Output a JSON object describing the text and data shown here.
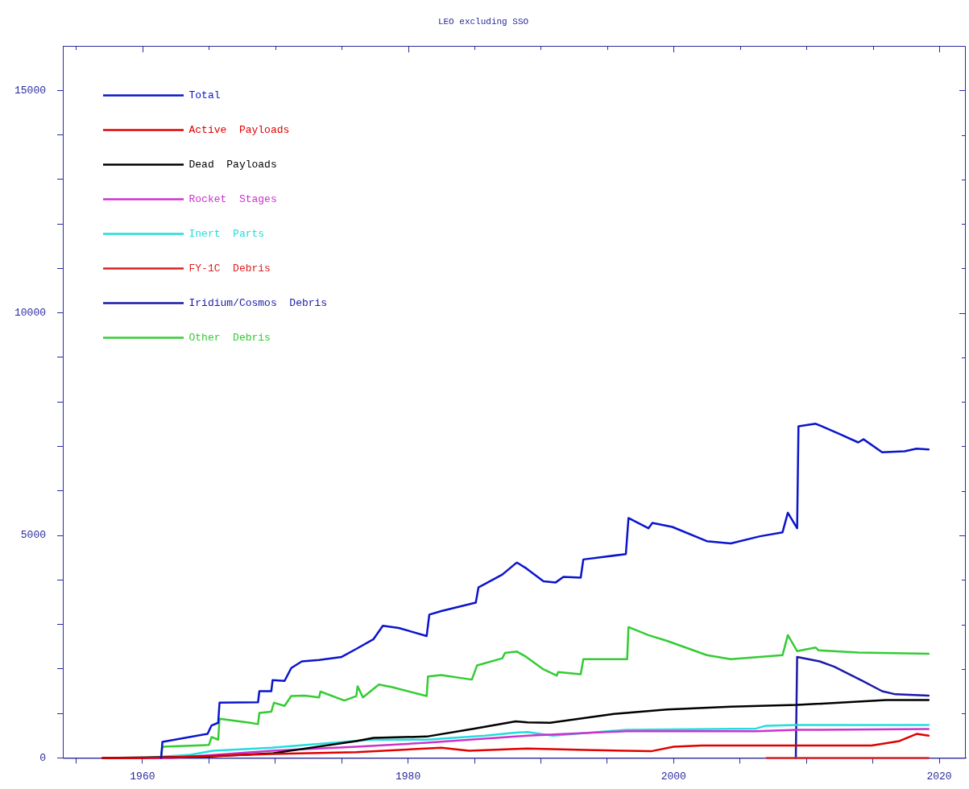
{
  "chart_data": {
    "type": "line",
    "title": "LEO excluding SSO",
    "legend": "top left",
    "grid": false,
    "marker": "none",
    "line_style": "solid",
    "xlim": [
      1954,
      2022
    ],
    "ylim": [
      0,
      16000
    ],
    "xticks": [
      {
        "value": 1955,
        "label": null
      },
      1960,
      {
        "value": 1965,
        "label": null
      },
      {
        "value": 1970,
        "label": null
      },
      {
        "value": 1975,
        "label": null
      },
      1980,
      {
        "value": 1985,
        "label": null
      },
      {
        "value": 1990,
        "label": null
      },
      {
        "value": 1995,
        "label": null
      },
      2000,
      {
        "value": 2005,
        "label": null
      },
      {
        "value": 2010,
        "label": null
      },
      {
        "value": 2015,
        "label": null
      },
      2020
    ],
    "yticks": [
      0,
      {
        "value": 1000,
        "label": null
      },
      {
        "value": 2000,
        "label": null
      },
      {
        "value": 3000,
        "label": null
      },
      {
        "value": 4000,
        "label": null
      },
      5000,
      {
        "value": 6000,
        "label": null
      },
      {
        "value": 7000,
        "label": null
      },
      {
        "value": 8000,
        "label": null
      },
      {
        "value": 9000,
        "label": null
      },
      10000,
      {
        "value": 11000,
        "label": null
      },
      {
        "value": 12000,
        "label": null
      },
      {
        "value": 13000,
        "label": null
      },
      {
        "value": 14000,
        "label": null
      },
      15000
    ],
    "series": [
      {
        "name": "Total",
        "color": "#0a14cc",
        "x": [
          1961.4,
          1961.5,
          1964.9,
          1965.2,
          1965.7,
          1965.8,
          1968.7,
          1968.8,
          1969.7,
          1969.8,
          1970.7,
          1971.2,
          1972,
          1973.3,
          1975,
          1976.1,
          1977.4,
          1978.1,
          1979.3,
          1981.4,
          1981.6,
          1982.5,
          1985.1,
          1985.3,
          1987.1,
          1988.1,
          1988.2,
          1988.9,
          1990.2,
          1991.1,
          1991.7,
          1993,
          1993.2,
          1996.4,
          1996.6,
          1998.1,
          1998.4,
          1999.9,
          2002.5,
          2004.3,
          2006.5,
          2008.2,
          2008.6,
          2009.3,
          2009.4,
          2010.7,
          2012.4,
          2013.9,
          2014.3,
          2015.7,
          2017.4,
          2018.3,
          2019.2
        ],
        "values": [
          0,
          360,
          540,
          730,
          790,
          1240,
          1250,
          1500,
          1500,
          1750,
          1730,
          2020,
          2170,
          2200,
          2270,
          2450,
          2670,
          2970,
          2920,
          2740,
          3220,
          3300,
          3490,
          3830,
          4120,
          4370,
          4390,
          4260,
          3970,
          3940,
          4070,
          4050,
          4460,
          4580,
          5390,
          5160,
          5280,
          5190,
          4870,
          4820,
          4980,
          5070,
          5510,
          5160,
          7450,
          7510,
          7290,
          7090,
          7160,
          6870,
          6890,
          6950,
          6930
        ]
      },
      {
        "name": "Active  Payloads",
        "color": "#e00000",
        "x": [
          1957,
          1960,
          1963,
          1969.7,
          1976.1,
          1982.5,
          1984.6,
          1988.1,
          1989,
          1993.4,
          1998.3,
          2000,
          2002.1,
          2010.7,
          2014.9,
          2017,
          2018.3,
          2019.2
        ],
        "values": [
          0,
          0,
          20,
          90,
          130,
          230,
          160,
          200,
          210,
          180,
          150,
          250,
          280,
          280,
          280,
          380,
          540,
          500
        ]
      },
      {
        "name": "Dead  Payloads",
        "color": "#000000",
        "x": [
          1957,
          1964.9,
          1969.7,
          1976.1,
          1977.4,
          1981.4,
          1985,
          1988.1,
          1989,
          1990.7,
          1995.5,
          1999.5,
          2004.3,
          2009.3,
          2016,
          2019.2
        ],
        "values": [
          0,
          30,
          100,
          380,
          450,
          480,
          660,
          820,
          800,
          790,
          990,
          1090,
          1150,
          1190,
          1300,
          1300
        ]
      },
      {
        "name": "Rocket  Stages",
        "color": "#cc33cc",
        "x": [
          1957,
          1962.2,
          1969.7,
          1976.1,
          1981.4,
          1988.1,
          1989,
          1996.4,
          2006.2,
          2009.3,
          2019.2
        ],
        "values": [
          0,
          0,
          160,
          250,
          340,
          480,
          500,
          600,
          600,
          630,
          650
        ]
      },
      {
        "name": "Inert  Parts",
        "color": "#22dddd",
        "x": [
          1957,
          1960,
          1963.6,
          1965.3,
          1969.7,
          1977.2,
          1981.4,
          1985.8,
          1988.1,
          1989,
          1990.9,
          1996.4,
          2006.2,
          2006.9,
          2009.3,
          2019.2
        ],
        "values": [
          0,
          0,
          70,
          160,
          230,
          410,
          410,
          500,
          570,
          580,
          500,
          630,
          660,
          720,
          740,
          740
        ]
      },
      {
        "name": "FY-1C  Debris",
        "color": "#dd2020",
        "x": [
          2007,
          2019.2
        ],
        "values": [
          0,
          0
        ]
      },
      {
        "name": "Iridium/Cosmos  Debris",
        "color": "#1a1aa8",
        "x": [
          2009.2,
          2009.3,
          2011,
          2012.1,
          2014.3,
          2015.7,
          2016.7,
          2019.2
        ],
        "values": [
          0,
          2270,
          2170,
          2050,
          1720,
          1500,
          1430,
          1400
        ]
      },
      {
        "name": "Other  Debris",
        "color": "#33cc33",
        "x": [
          1961.4,
          1961.5,
          1965,
          1965.2,
          1965.7,
          1965.8,
          1968.1,
          1968.7,
          1968.8,
          1969.7,
          1969.9,
          1970.7,
          1971.2,
          1972.2,
          1973.3,
          1973.4,
          1975.2,
          1976.1,
          1976.2,
          1976.6,
          1977.8,
          1978.8,
          1981.4,
          1981.5,
          1982.5,
          1984.8,
          1985.2,
          1987.1,
          1987.3,
          1988.2,
          1988.9,
          1990.2,
          1991.2,
          1991.3,
          1993,
          1993.2,
          1996.5,
          1996.6,
          1998.1,
          1999.5,
          2002.5,
          2004.3,
          2008.2,
          2008.6,
          2009.3,
          2010.7,
          2010.9,
          2013.9,
          2019.2
        ],
        "values": [
          0,
          250,
          290,
          470,
          410,
          880,
          790,
          760,
          1010,
          1040,
          1240,
          1170,
          1390,
          1400,
          1360,
          1490,
          1290,
          1390,
          1610,
          1360,
          1650,
          1590,
          1390,
          1830,
          1860,
          1760,
          2080,
          2240,
          2360,
          2390,
          2270,
          1990,
          1850,
          1930,
          1880,
          2220,
          2220,
          2940,
          2760,
          2630,
          2310,
          2220,
          2310,
          2760,
          2400,
          2480,
          2420,
          2370,
          2340
        ]
      }
    ]
  }
}
